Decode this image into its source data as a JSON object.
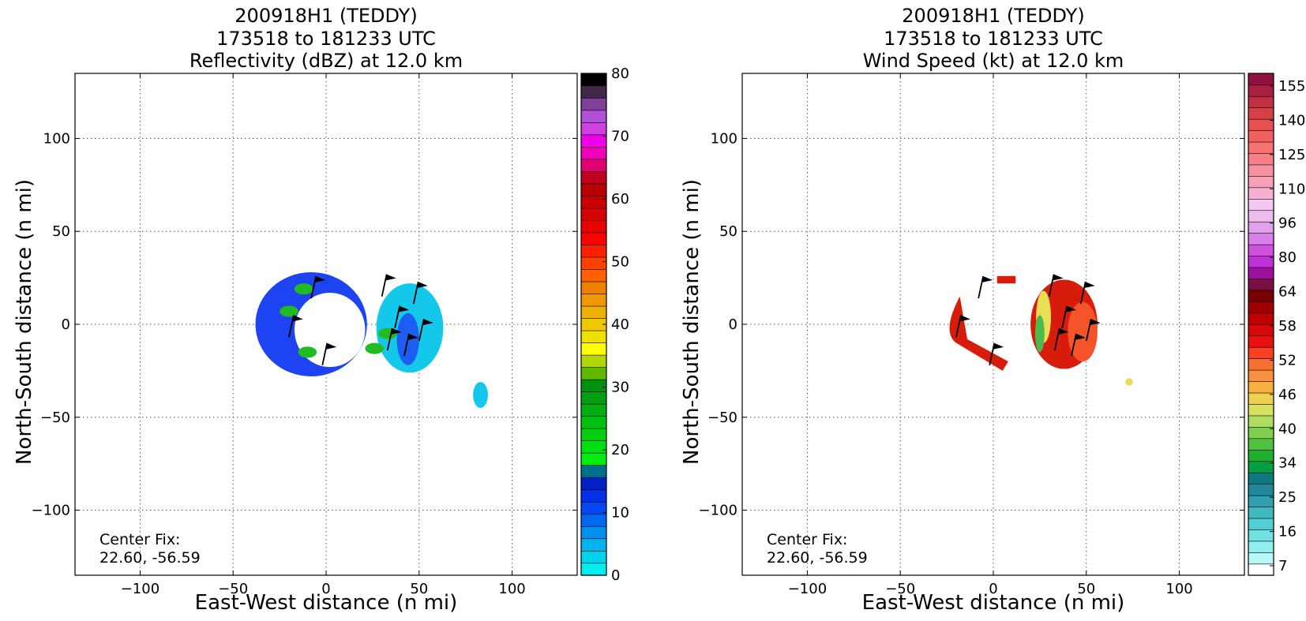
{
  "colors": {
    "grid": "#555555",
    "axis": "#000000",
    "barb": "#000000",
    "blue_echo": "#1d43f2",
    "cyan_echo": "#14c8ec",
    "green_echo": "#22bb22",
    "wind_red": "#d81c0c",
    "wind_orange": "#f5542a",
    "wind_yellow": "#e8df55",
    "wind_green": "#4cbb4c"
  },
  "panels": [
    {
      "title_line1": "200918H1 (TEDDY)",
      "title_line2": "173518 to 181233 UTC",
      "title_line3": "Reflectivity (dBZ) at 12.0 km",
      "xlabel": "East-West distance (n mi)",
      "ylabel": "North-South distance (n mi)",
      "center_fix_label": "Center Fix:",
      "center_fix_value": "22.60, -56.59"
    },
    {
      "title_line1": "200918H1 (TEDDY)",
      "title_line2": "173518 to 181233 UTC",
      "title_line3": "Wind Speed (kt) at 12.0 km",
      "xlabel": "East-West distance (n mi)",
      "ylabel": "North-South distance (n mi)",
      "center_fix_label": "Center Fix:",
      "center_fix_value": "22.60, -56.59"
    }
  ],
  "chart_data": [
    {
      "type": "heatmap",
      "title": "200918H1 (TEDDY)\n173518 to 181233 UTC\nReflectivity (dBZ) at 12.0 km",
      "xlabel": "East-West distance (n mi)",
      "ylabel": "North-South distance (n mi)",
      "xlim": [
        -135,
        135
      ],
      "ylim": [
        -135,
        135
      ],
      "xticks": [
        -100,
        -50,
        0,
        50,
        100
      ],
      "yticks": [
        -100,
        -50,
        0,
        50,
        100
      ],
      "xtick_labels": [
        "−100",
        "−50",
        "0",
        "50",
        "100"
      ],
      "ytick_labels": [
        "−100",
        "−50",
        "0",
        "50",
        "100"
      ],
      "grid": true,
      "colorbar": {
        "tick_values": [
          0,
          10,
          20,
          30,
          40,
          50,
          60,
          70,
          80
        ],
        "tick_labels": [
          "0",
          "10",
          "20",
          "30",
          "40",
          "50",
          "60",
          "70",
          "80"
        ],
        "colors": [
          "#00eeee",
          "#00d4ec",
          "#00b4ec",
          "#0090f0",
          "#0068f0",
          "#0048f4",
          "#0030e8",
          "#0020c8",
          "#007088",
          "#00ee10",
          "#00e010",
          "#00d010",
          "#00c010",
          "#00b010",
          "#00a010",
          "#009010",
          "#60b800",
          "#b0d800",
          "#ffff00",
          "#f0e000",
          "#f0c800",
          "#f0b000",
          "#f09800",
          "#f08000",
          "#ff6000",
          "#ff4000",
          "#ff2000",
          "#ff0000",
          "#e80000",
          "#d80000",
          "#c80000",
          "#b80000",
          "#c00020",
          "#e00070",
          "#f000b8",
          "#f000e8",
          "#d040e0",
          "#b050d8",
          "#804098",
          "#402848",
          "#000000"
        ]
      },
      "regions": [
        {
          "name": "inner ring",
          "value_dbz": 12,
          "color": "#1d43f2",
          "center": [
            -8,
            0
          ],
          "rx": 30,
          "ry": 28
        },
        {
          "name": "eastern band",
          "value_dbz": 4,
          "color": "#14c8ec",
          "center": [
            45,
            -2
          ],
          "rx": 18,
          "ry": 24
        },
        {
          "name": "outlier echo",
          "value_dbz": 5,
          "color": "#14c8ec",
          "center": [
            83,
            -38
          ],
          "rx": 4,
          "ry": 7
        },
        {
          "name": "green patches",
          "value_dbz": 20,
          "color": "#22bb22",
          "center": [
            -10,
            -15
          ],
          "rx": 5,
          "ry": 3
        }
      ],
      "eye": {
        "center": [
          2,
          -3
        ],
        "rx": 19,
        "ry": 20
      },
      "center_fix": "22.60, -56.59"
    },
    {
      "type": "heatmap",
      "title": "200918H1 (TEDDY)\n173518 to 181233 UTC\nWind Speed (kt) at 12.0 km",
      "xlabel": "East-West distance (n mi)",
      "ylabel": "North-South distance (n mi)",
      "xlim": [
        -135,
        135
      ],
      "ylim": [
        -135,
        135
      ],
      "xticks": [
        -100,
        -50,
        0,
        50,
        100
      ],
      "yticks": [
        -100,
        -50,
        0,
        50,
        100
      ],
      "xtick_labels": [
        "−100",
        "−50",
        "0",
        "50",
        "100"
      ],
      "ytick_labels": [
        "−100",
        "−50",
        "0",
        "50",
        "100"
      ],
      "grid": true,
      "colorbar": {
        "tick_labels": [
          "7",
          "16",
          "25",
          "34",
          "40",
          "46",
          "52",
          "58",
          "64",
          "80",
          "96",
          "110",
          "125",
          "140",
          "155"
        ],
        "colors": [
          "#ffffff",
          "#b4f8f8",
          "#90eeee",
          "#70e0e0",
          "#50d0d4",
          "#40b8c0",
          "#30a0b0",
          "#208898",
          "#107880",
          "#00a040",
          "#20b030",
          "#50c040",
          "#80d050",
          "#b0dc60",
          "#d8e060",
          "#f0d050",
          "#f8b040",
          "#f89040",
          "#f87030",
          "#f84020",
          "#e81010",
          "#d80808",
          "#c00000",
          "#a00000",
          "#780000",
          "#781040",
          "#a010a0",
          "#c030d8",
          "#d050e0",
          "#d880e8",
          "#e0a0ea",
          "#ecbcec",
          "#f4c8f0",
          "#f8b0d0",
          "#f8a0b8",
          "#f890a0",
          "#f88088",
          "#f87070",
          "#f06060",
          "#e85050",
          "#d84048",
          "#c03040",
          "#a82040",
          "#901040"
        ]
      },
      "regions": [
        {
          "name": "eastern wind maximum",
          "value_kt": 58,
          "color": "#d81c0c",
          "center": [
            38,
            0
          ],
          "rx": 18,
          "ry": 24
        },
        {
          "name": "western arc",
          "value_kt": 56,
          "color": "#d81c0c",
          "center": [
            -10,
            0
          ],
          "rx": 14,
          "ry": 24
        },
        {
          "name": "outlier point",
          "value_kt": 44,
          "color": "#e8df55",
          "center": [
            73,
            -31
          ],
          "rx": 2,
          "ry": 2
        }
      ],
      "center_fix": "22.60, -56.59"
    }
  ]
}
